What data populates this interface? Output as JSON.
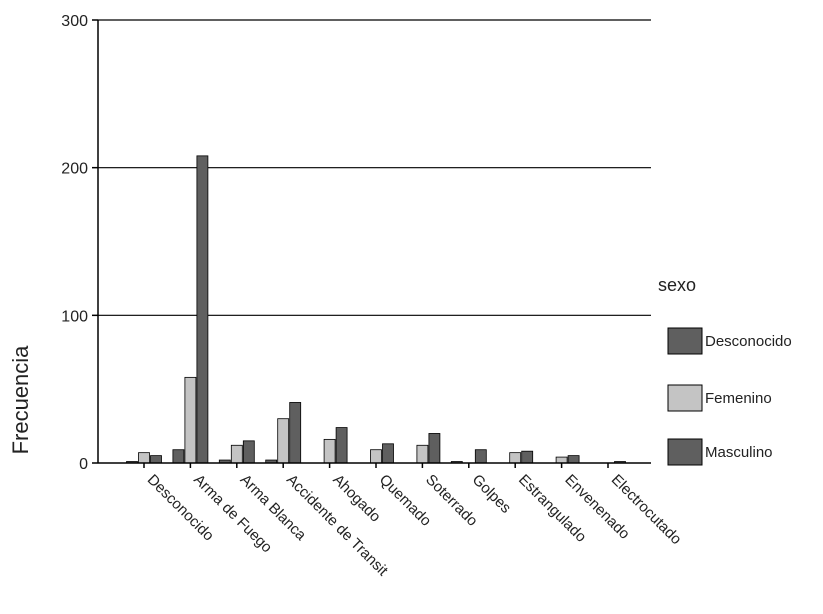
{
  "chart_data": {
    "type": "bar",
    "title": "",
    "xlabel": "",
    "ylabel": "Frecuencia",
    "ylim": [
      0,
      300
    ],
    "yticks": [
      0,
      100,
      200,
      300
    ],
    "grid": true,
    "legend_title": "sexo",
    "legend_position": "right",
    "categories": [
      "Desconocido",
      "Arma de Fuego",
      "Arma Blanca",
      "Accidente de Transit",
      "Ahogado",
      "Quemado",
      "Soterrado",
      "Golpes",
      "Estrangulado",
      "Envenenado",
      "Electrocutado"
    ],
    "series": [
      {
        "name": "Desconocido",
        "color": "#5f5f5f",
        "values": [
          1,
          9,
          2,
          2,
          0,
          0,
          0,
          1,
          0,
          0,
          0
        ]
      },
      {
        "name": "Femenino",
        "color": "#c4c4c4",
        "values": [
          7,
          58,
          12,
          30,
          16,
          9,
          12,
          0,
          7,
          4,
          0
        ]
      },
      {
        "name": "Masculino",
        "color": "#5f5f5f",
        "values": [
          5,
          208,
          15,
          41,
          24,
          13,
          20,
          9,
          8,
          5,
          1
        ]
      }
    ]
  }
}
